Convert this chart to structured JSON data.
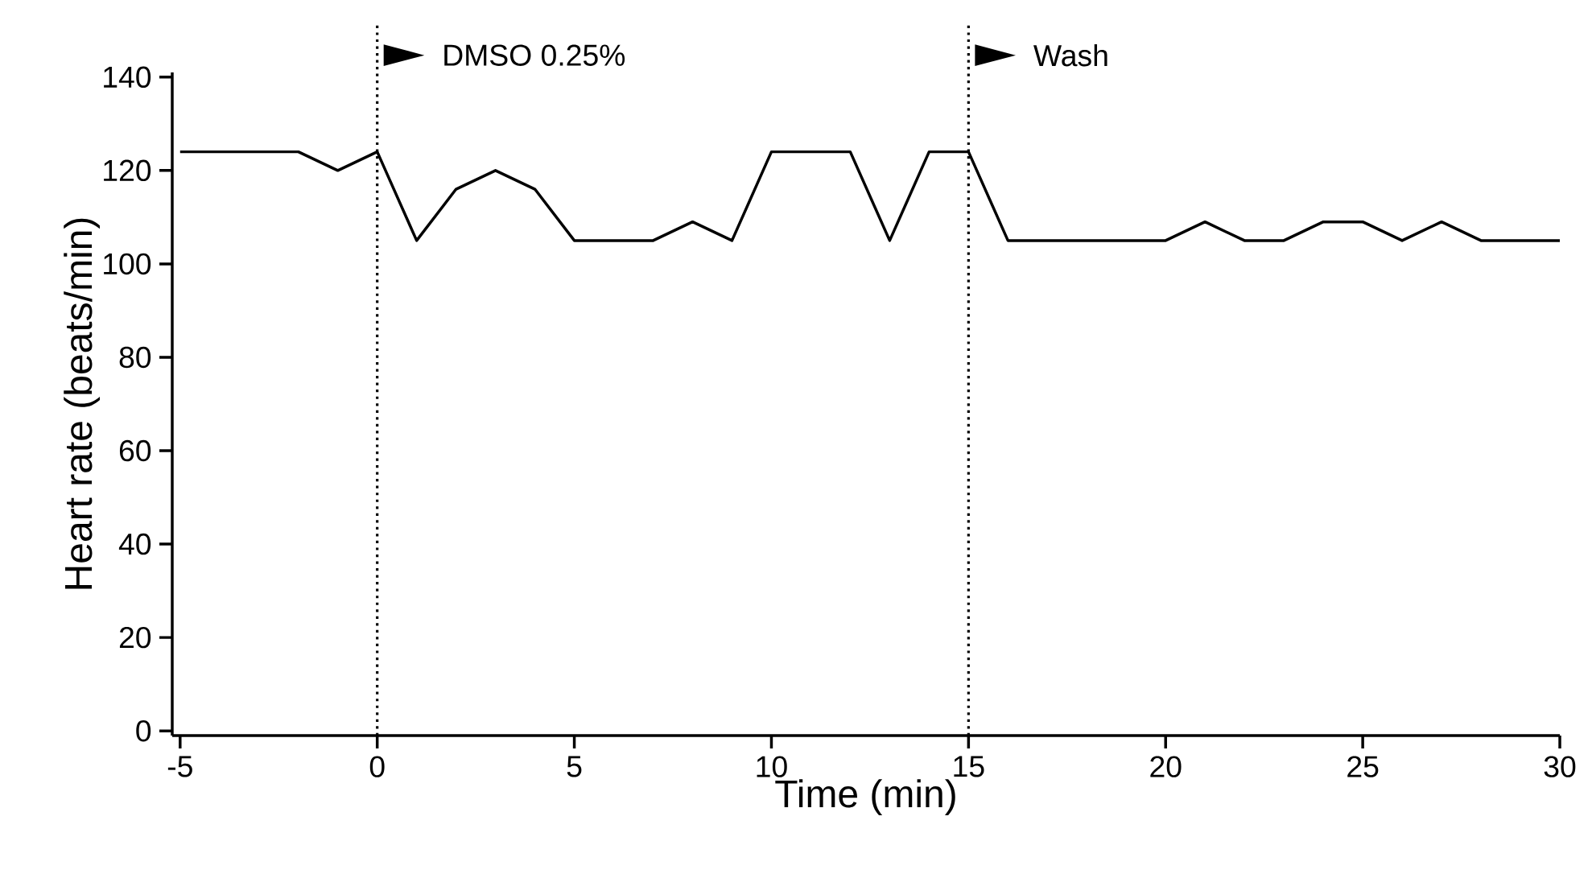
{
  "chart_data": {
    "type": "line",
    "xlabel": "Time (min)",
    "ylabel": "Heart rate (beats/min)",
    "xlim": [
      -5.2,
      30
    ],
    "ylim": [
      -1,
      141
    ],
    "xticks": [
      -5,
      0,
      5,
      10,
      15,
      20,
      25,
      30
    ],
    "yticks": [
      0,
      20,
      40,
      60,
      80,
      100,
      120,
      140
    ],
    "x": [
      -5,
      -2,
      -1,
      0,
      1,
      2,
      3,
      4,
      5,
      6,
      7,
      8,
      9,
      10,
      11,
      12,
      13,
      14,
      15,
      16,
      17,
      18,
      19,
      20,
      21,
      22,
      23,
      24,
      25,
      26,
      27,
      28,
      29,
      30
    ],
    "series": [
      {
        "color": "#000000",
        "values": [
          124,
          124,
          120,
          124,
          105,
          116,
          120,
          116,
          105,
          105,
          105,
          109,
          105,
          124,
          124,
          124,
          105,
          124,
          124,
          105,
          105,
          105,
          105,
          105,
          109,
          105,
          105,
          109,
          109,
          105,
          109,
          105,
          105,
          105
        ]
      }
    ],
    "marker": "none",
    "line_style": "solid",
    "grid": false,
    "ref_lines": [
      {
        "axis": "x",
        "value": 0,
        "label": "DMSO 0.25%",
        "line_style": "dotted",
        "color": "#000000"
      },
      {
        "axis": "x",
        "value": 15,
        "label": "Wash",
        "line_style": "dotted",
        "color": "#000000"
      }
    ]
  }
}
